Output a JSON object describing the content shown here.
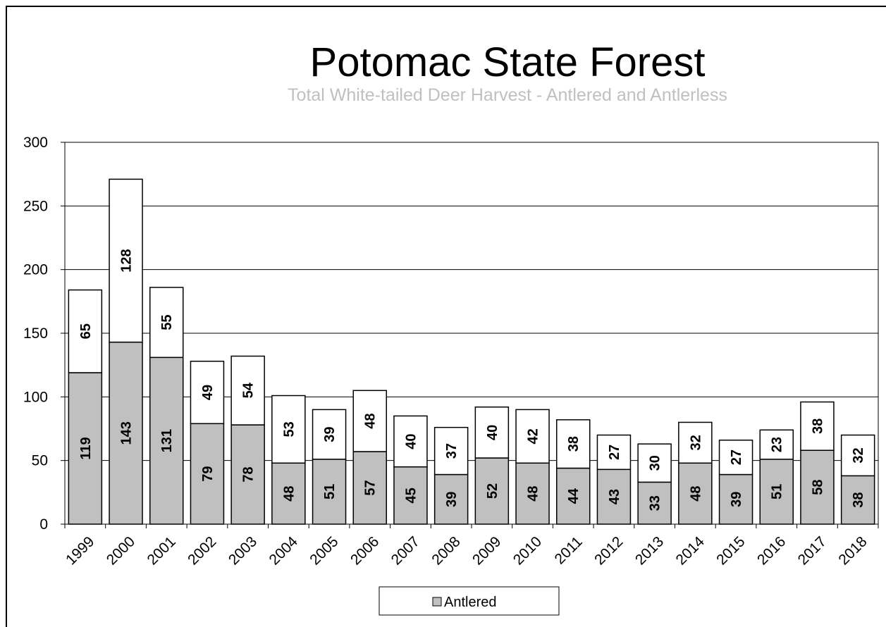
{
  "chart_data": {
    "type": "bar",
    "stacked": true,
    "title": "Potomac State Forest",
    "subtitle": "Total White-tailed Deer Harvest - Antlered and Antlerless",
    "xlabel": "",
    "ylabel": "",
    "ylim": [
      0,
      300
    ],
    "yticks": [
      0,
      50,
      100,
      150,
      200,
      250,
      300
    ],
    "grid": true,
    "legend_position": "bottom",
    "categories": [
      "1999",
      "2000",
      "2001",
      "2002",
      "2003",
      "2004",
      "2005",
      "2006",
      "2007",
      "2008",
      "2009",
      "2010",
      "2011",
      "2012",
      "2013",
      "2014",
      "2015",
      "2016",
      "2017",
      "2018"
    ],
    "series": [
      {
        "name": "Antlered",
        "color": "#c0c0c0",
        "values": [
          119,
          143,
          131,
          79,
          78,
          48,
          51,
          57,
          45,
          39,
          52,
          48,
          44,
          43,
          33,
          48,
          39,
          51,
          58,
          38
        ]
      },
      {
        "color": "#ffffff",
        "values": [
          65,
          128,
          55,
          49,
          54,
          53,
          39,
          48,
          40,
          37,
          40,
          42,
          38,
          27,
          30,
          32,
          27,
          23,
          38,
          32
        ]
      }
    ]
  },
  "legend": {
    "label": "Antlered"
  }
}
